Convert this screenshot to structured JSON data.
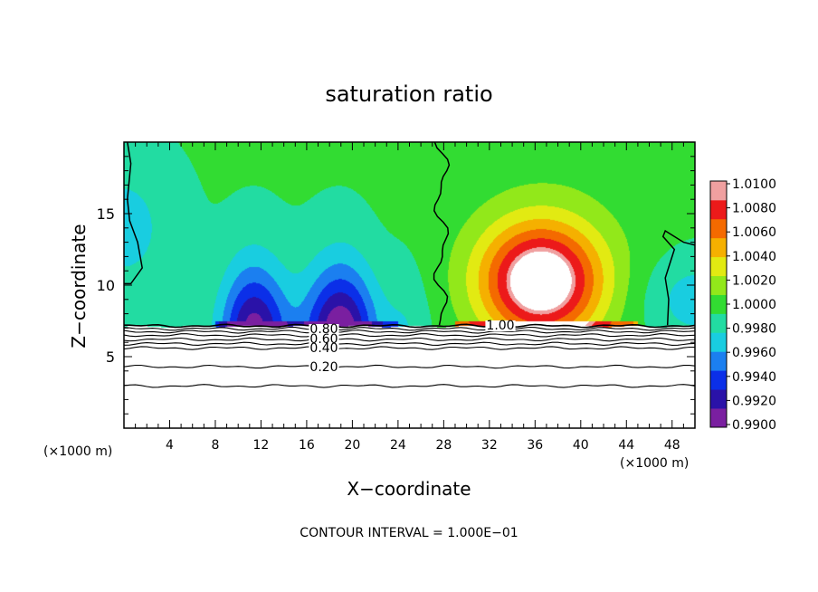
{
  "chart_data": {
    "type": "heatmap",
    "title": "saturation ratio",
    "xlabel": "X−coordinate",
    "ylabel": "Z−coordinate",
    "x_unit": "(×1000 m)",
    "z_unit": "(×1000 m)",
    "xlim": [
      0,
      50
    ],
    "ylim": [
      0,
      20
    ],
    "x_ticks": [
      4,
      8,
      12,
      16,
      20,
      24,
      28,
      32,
      36,
      40,
      44,
      48
    ],
    "y_ticks": [
      5,
      10,
      15
    ],
    "footer": "CONTOUR INTERVAL = 1.000E−01",
    "contour_labels": [
      "1.00",
      "0.80",
      "0.60",
      "0.40",
      "0.20"
    ],
    "colorbar": {
      "min": 0.99,
      "max": 1.01,
      "labels": [
        "1.0100",
        "1.0080",
        "1.0060",
        "1.0040",
        "1.0020",
        "1.0000",
        "0.9980",
        "0.9960",
        "0.9940",
        "0.9920",
        "0.9900"
      ],
      "colors": [
        "#7a1fa0",
        "#2a12a8",
        "#0b2fe8",
        "#1b7ff0",
        "#19cde0",
        "#22dca2",
        "#32dc32",
        "#92e81a",
        "#e2ea12",
        "#f5b000",
        "#f46a00",
        "#ec1a1a",
        "#f0a0a0"
      ]
    },
    "field": {
      "left_min_center": [
        16,
        9.2
      ],
      "dry_min": 0.9905,
      "right_max_center": [
        36.5,
        10.2
      ],
      "moist_max": 1.0125,
      "cloud_free_top": 7.1
    }
  }
}
